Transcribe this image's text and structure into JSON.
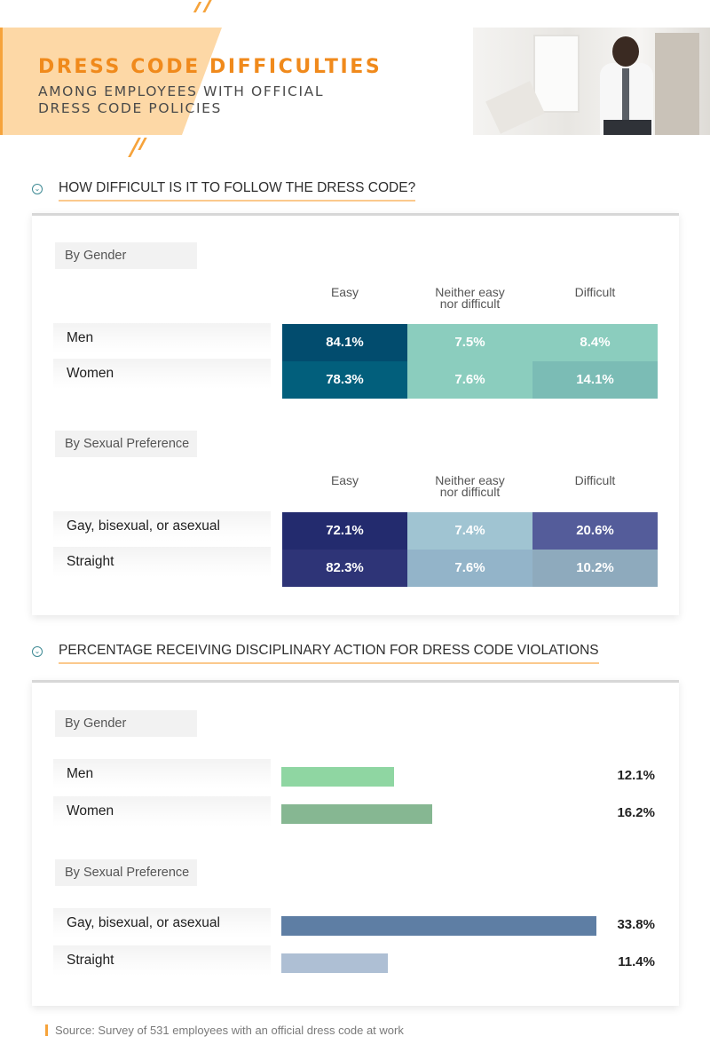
{
  "header": {
    "title": "DRESS CODE DIFFICULTIES",
    "subtitle": "AMONG EMPLOYEES WITH OFFICIAL DRESS CODE POLICIES"
  },
  "sections": [
    {
      "title": "HOW DIFFICULT IS IT TO FOLLOW THE DRESS CODE?",
      "icon": "chevron-circle-icon"
    },
    {
      "title": "PERCENTAGE RECEIVING DISCIPLINARY ACTION FOR DRESS CODE VIOLATIONS",
      "icon": "chevron-circle-icon"
    }
  ],
  "source": "Source: Survey of 531 employees with an official dress code at work",
  "colors": {
    "accent_orange": "#f08a1c",
    "teal_dark": "#024c6e",
    "teal_mid": "#025f7c",
    "teal_light": "#8bcdbe",
    "teal_muted": "#7bbcb5",
    "navy_dark": "#232b6e",
    "navy_mid": "#2e3477",
    "navy_soft": "#545c9a",
    "slate_light": "#a0c4d2",
    "slate_mid": "#93b4c9",
    "slate_muted": "#8eaabd",
    "green_light": "#8fd6a2",
    "green_mid": "#86b792",
    "blue_dark": "#5e7ea4",
    "blue_light": "#aebfd4"
  },
  "chart_data": [
    {
      "type": "table",
      "panel": "By Gender",
      "columns": [
        "Easy",
        "Neither easy nor difficult",
        "Difficult"
      ],
      "column_labels": [
        [
          "Easy"
        ],
        [
          "Neither easy",
          "nor difficult"
        ],
        [
          "Difficult"
        ]
      ],
      "rows": [
        {
          "label": "Men",
          "values": [
            84.1,
            7.5,
            8.4
          ],
          "display": [
            "84.1%",
            "7.5%",
            "8.4%"
          ],
          "colors": [
            "#024c6e",
            "#8bcdbe",
            "#8bcdbe"
          ]
        },
        {
          "label": "Women",
          "values": [
            78.3,
            7.6,
            14.1
          ],
          "display": [
            "78.3%",
            "7.6%",
            "14.1%"
          ],
          "colors": [
            "#025f7c",
            "#8bcdbe",
            "#7bbcb5"
          ]
        }
      ]
    },
    {
      "type": "table",
      "panel": "By Sexual Preference",
      "columns": [
        "Easy",
        "Neither easy nor difficult",
        "Difficult"
      ],
      "column_labels": [
        [
          "Easy"
        ],
        [
          "Neither easy",
          "nor difficult"
        ],
        [
          "Difficult"
        ]
      ],
      "rows": [
        {
          "label": "Gay, bisexual, or asexual",
          "values": [
            72.1,
            7.4,
            20.6
          ],
          "display": [
            "72.1%",
            "7.4%",
            "20.6%"
          ],
          "colors": [
            "#232b6e",
            "#a0c4d2",
            "#545c9a"
          ]
        },
        {
          "label": "Straight",
          "values": [
            82.3,
            7.6,
            10.2
          ],
          "display": [
            "82.3%",
            "7.6%",
            "10.2%"
          ],
          "colors": [
            "#2e3477",
            "#93b4c9",
            "#8eaabd"
          ]
        }
      ]
    },
    {
      "type": "bar",
      "orientation": "horizontal",
      "panel": "By Gender",
      "categories": [
        "Men",
        "Women"
      ],
      "values": [
        12.1,
        16.2
      ],
      "display": [
        "12.1%",
        "16.2%"
      ],
      "colors": [
        "#8fd6a2",
        "#86b792"
      ],
      "xlim": [
        0,
        33.8
      ]
    },
    {
      "type": "bar",
      "orientation": "horizontal",
      "panel": "By Sexual Preference",
      "categories": [
        "Gay, bisexual, or asexual",
        "Straight"
      ],
      "values": [
        33.8,
        11.4
      ],
      "display": [
        "33.8%",
        "11.4%"
      ],
      "colors": [
        "#5e7ea4",
        "#aebfd4"
      ],
      "xlim": [
        0,
        33.8
      ]
    }
  ]
}
